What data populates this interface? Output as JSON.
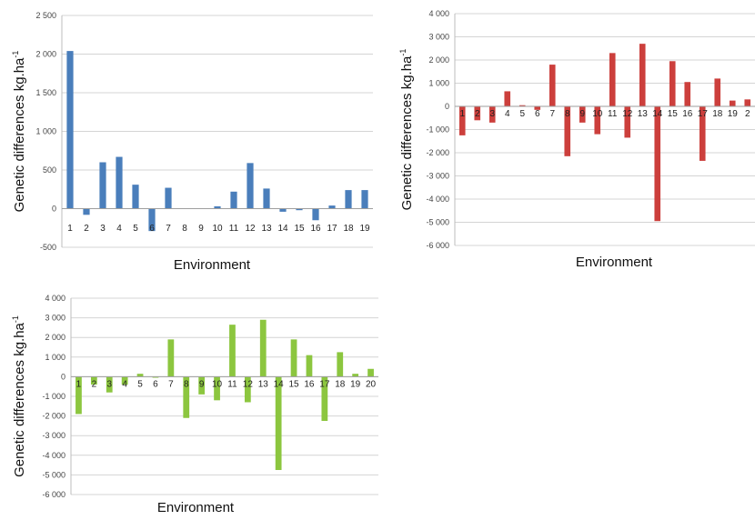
{
  "chart_data": [
    {
      "type": "bar",
      "title": "",
      "xlabel": "Environment",
      "ylabel": "Genetic differences kg.ha",
      "ylabel_sup": "-1",
      "color": "#4a7ebb",
      "ylim": [
        -500,
        2500
      ],
      "yticks": [
        -500,
        0,
        500,
        1000,
        1500,
        2000,
        2500
      ],
      "ytick_labels": [
        "-500",
        "0",
        "500",
        "1 000",
        "1 500",
        "2 000",
        "2 500"
      ],
      "grid": true,
      "categories": [
        "1",
        "2",
        "3",
        "4",
        "5",
        "6",
        "7",
        "8",
        "9",
        "10",
        "11",
        "12",
        "13",
        "14",
        "15",
        "16",
        "17",
        "18",
        "19"
      ],
      "values": [
        2040,
        -80,
        600,
        670,
        310,
        -290,
        270,
        0,
        0,
        30,
        220,
        590,
        260,
        -40,
        -20,
        -150,
        40,
        240,
        240
      ]
    },
    {
      "type": "bar",
      "title": "",
      "xlabel": "Environment",
      "ylabel": "Genetic differences kg.ha",
      "ylabel_sup": "-1",
      "color": "#cc3f3c",
      "ylim": [
        -6000,
        4000
      ],
      "yticks": [
        -6000,
        -5000,
        -4000,
        -3000,
        -2000,
        -1000,
        0,
        1000,
        2000,
        3000,
        4000
      ],
      "ytick_labels": [
        "-6 000",
        "-5 000",
        "-4 000",
        "-3 000",
        "-2 000",
        "-1 000",
        "0",
        "1 000",
        "2 000",
        "3 000",
        "4 000"
      ],
      "grid": true,
      "categories": [
        "1",
        "2",
        "3",
        "4",
        "5",
        "6",
        "7",
        "8",
        "9",
        "10",
        "11",
        "12",
        "13",
        "14",
        "15",
        "16",
        "17",
        "18",
        "19",
        "2"
      ],
      "values": [
        -1250,
        -600,
        -700,
        650,
        50,
        -150,
        1800,
        -2150,
        -700,
        -1200,
        2300,
        -1350,
        2700,
        -4950,
        1950,
        1050,
        -2350,
        1200,
        250,
        300
      ]
    },
    {
      "type": "bar",
      "title": "",
      "xlabel": "Environment",
      "ylabel": "Genetic differences kg.ha",
      "ylabel_sup": "-1",
      "color": "#8cc63f",
      "ylim": [
        -6000,
        4000
      ],
      "yticks": [
        -6000,
        -5000,
        -4000,
        -3000,
        -2000,
        -1000,
        0,
        1000,
        2000,
        3000,
        4000
      ],
      "ytick_labels": [
        "-6 000",
        "-5 000",
        "-4 000",
        "-3 000",
        "-2 000",
        "-1 000",
        "0",
        "1 000",
        "2 000",
        "3 000",
        "4 000"
      ],
      "grid": true,
      "categories": [
        "1",
        "2",
        "3",
        "4",
        "5",
        "6",
        "7",
        "8",
        "9",
        "10",
        "11",
        "12",
        "13",
        "14",
        "15",
        "16",
        "17",
        "18",
        "19",
        "20"
      ],
      "values": [
        -1900,
        -400,
        -800,
        -400,
        150,
        -50,
        1900,
        -2100,
        -900,
        -1200,
        2650,
        -1300,
        2900,
        -4750,
        1900,
        1100,
        -2250,
        1250,
        150,
        400
      ]
    }
  ]
}
